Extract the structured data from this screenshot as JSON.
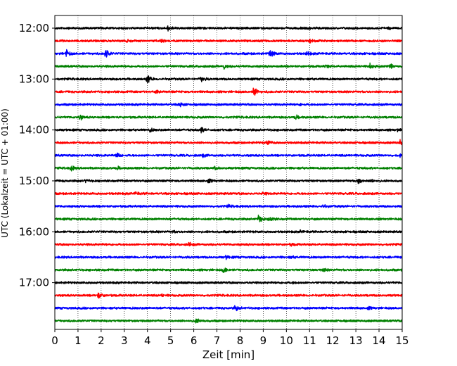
{
  "chart_data": {
    "type": "line",
    "title": "",
    "xlabel": "Zeit  [min]",
    "ylabel": "UTC (Lokalzeit = UTC + 01:00)",
    "xlim": [
      0,
      15
    ],
    "xticks": [
      "0",
      "1",
      "2",
      "3",
      "4",
      "5",
      "6",
      "7",
      "8",
      "9",
      "10",
      "11",
      "12",
      "13",
      "14",
      "15"
    ],
    "yticks": [
      "12:00",
      "13:00",
      "14:00",
      "15:00",
      "16:00",
      "17:00"
    ],
    "row_start": "12:00",
    "row_interval_min": 15,
    "grid": "vertical dotted",
    "colors": [
      "#000000",
      "#ff0000",
      "#0000ff",
      "#008000"
    ],
    "traces": [
      {
        "start": "12:00",
        "events": [
          [
            4.9,
            1.0
          ],
          [
            11.0,
            0.4
          ],
          [
            14.4,
            0.4
          ]
        ]
      },
      {
        "start": "12:15",
        "events": [
          [
            3.1,
            0.5
          ],
          [
            4.6,
            0.4
          ],
          [
            11.0,
            0.7
          ]
        ]
      },
      {
        "start": "12:30",
        "events": [
          [
            0.5,
            1.2
          ],
          [
            2.2,
            1.3
          ],
          [
            9.3,
            1.3
          ],
          [
            10.9,
            0.6
          ]
        ]
      },
      {
        "start": "12:45",
        "events": [
          [
            7.3,
            1.0
          ],
          [
            11.7,
            0.6
          ],
          [
            13.6,
            1.0
          ],
          [
            14.5,
            1.0
          ]
        ]
      },
      {
        "start": "13:00",
        "events": [
          [
            4.0,
            1.3
          ],
          [
            6.3,
            1.0
          ]
        ]
      },
      {
        "start": "13:15",
        "events": [
          [
            4.4,
            0.4
          ],
          [
            8.6,
            2.0
          ]
        ]
      },
      {
        "start": "13:30",
        "events": [
          [
            5.4,
            0.8
          ],
          [
            10.6,
            0.3
          ]
        ]
      },
      {
        "start": "13:45",
        "events": [
          [
            1.1,
            0.8
          ],
          [
            10.4,
            0.7
          ]
        ]
      },
      {
        "start": "14:00",
        "events": [
          [
            4.1,
            0.7
          ],
          [
            6.3,
            1.0
          ],
          [
            14.8,
            0.4
          ]
        ]
      },
      {
        "start": "14:15",
        "events": [
          [
            9.2,
            0.9
          ],
          [
            14.9,
            1.0
          ]
        ]
      },
      {
        "start": "14:30",
        "events": [
          [
            2.7,
            0.7
          ],
          [
            6.4,
            0.5
          ],
          [
            14.9,
            0.6
          ]
        ]
      },
      {
        "start": "14:45",
        "events": [
          [
            0.7,
            0.8
          ],
          [
            2.7,
            0.5
          ],
          [
            6.9,
            0.5
          ]
        ]
      },
      {
        "start": "15:00",
        "events": [
          [
            1.3,
            0.5
          ],
          [
            6.6,
            0.9
          ],
          [
            13.1,
            1.2
          ],
          [
            13.7,
            0.5
          ]
        ]
      },
      {
        "start": "15:15",
        "events": [
          [
            3.5,
            0.6
          ],
          [
            9.0,
            0.4
          ]
        ]
      },
      {
        "start": "15:30",
        "events": [
          [
            7.5,
            0.4
          ],
          [
            11.6,
            0.4
          ]
        ]
      },
      {
        "start": "15:45",
        "events": [
          [
            8.8,
            1.3
          ],
          [
            9.3,
            0.8
          ]
        ]
      },
      {
        "start": "16:00",
        "events": [
          [
            5.1,
            0.4
          ],
          [
            10.6,
            0.4
          ]
        ]
      },
      {
        "start": "16:15",
        "events": [
          [
            5.8,
            0.7
          ],
          [
            10.2,
            0.4
          ]
        ]
      },
      {
        "start": "16:30",
        "events": [
          [
            7.4,
            0.5
          ],
          [
            10.2,
            0.4
          ]
        ]
      },
      {
        "start": "16:45",
        "events": [
          [
            7.3,
            1.2
          ],
          [
            11.6,
            0.5
          ]
        ]
      },
      {
        "start": "17:00",
        "events": [
          [
            10.3,
            0.2
          ]
        ]
      },
      {
        "start": "17:15",
        "events": [
          [
            1.9,
            1.0
          ],
          [
            4.6,
            0.5
          ]
        ]
      },
      {
        "start": "17:30",
        "events": [
          [
            7.8,
            1.0
          ],
          [
            13.5,
            0.6
          ]
        ]
      },
      {
        "start": "17:45",
        "events": [
          [
            6.1,
            0.7
          ]
        ]
      }
    ]
  }
}
